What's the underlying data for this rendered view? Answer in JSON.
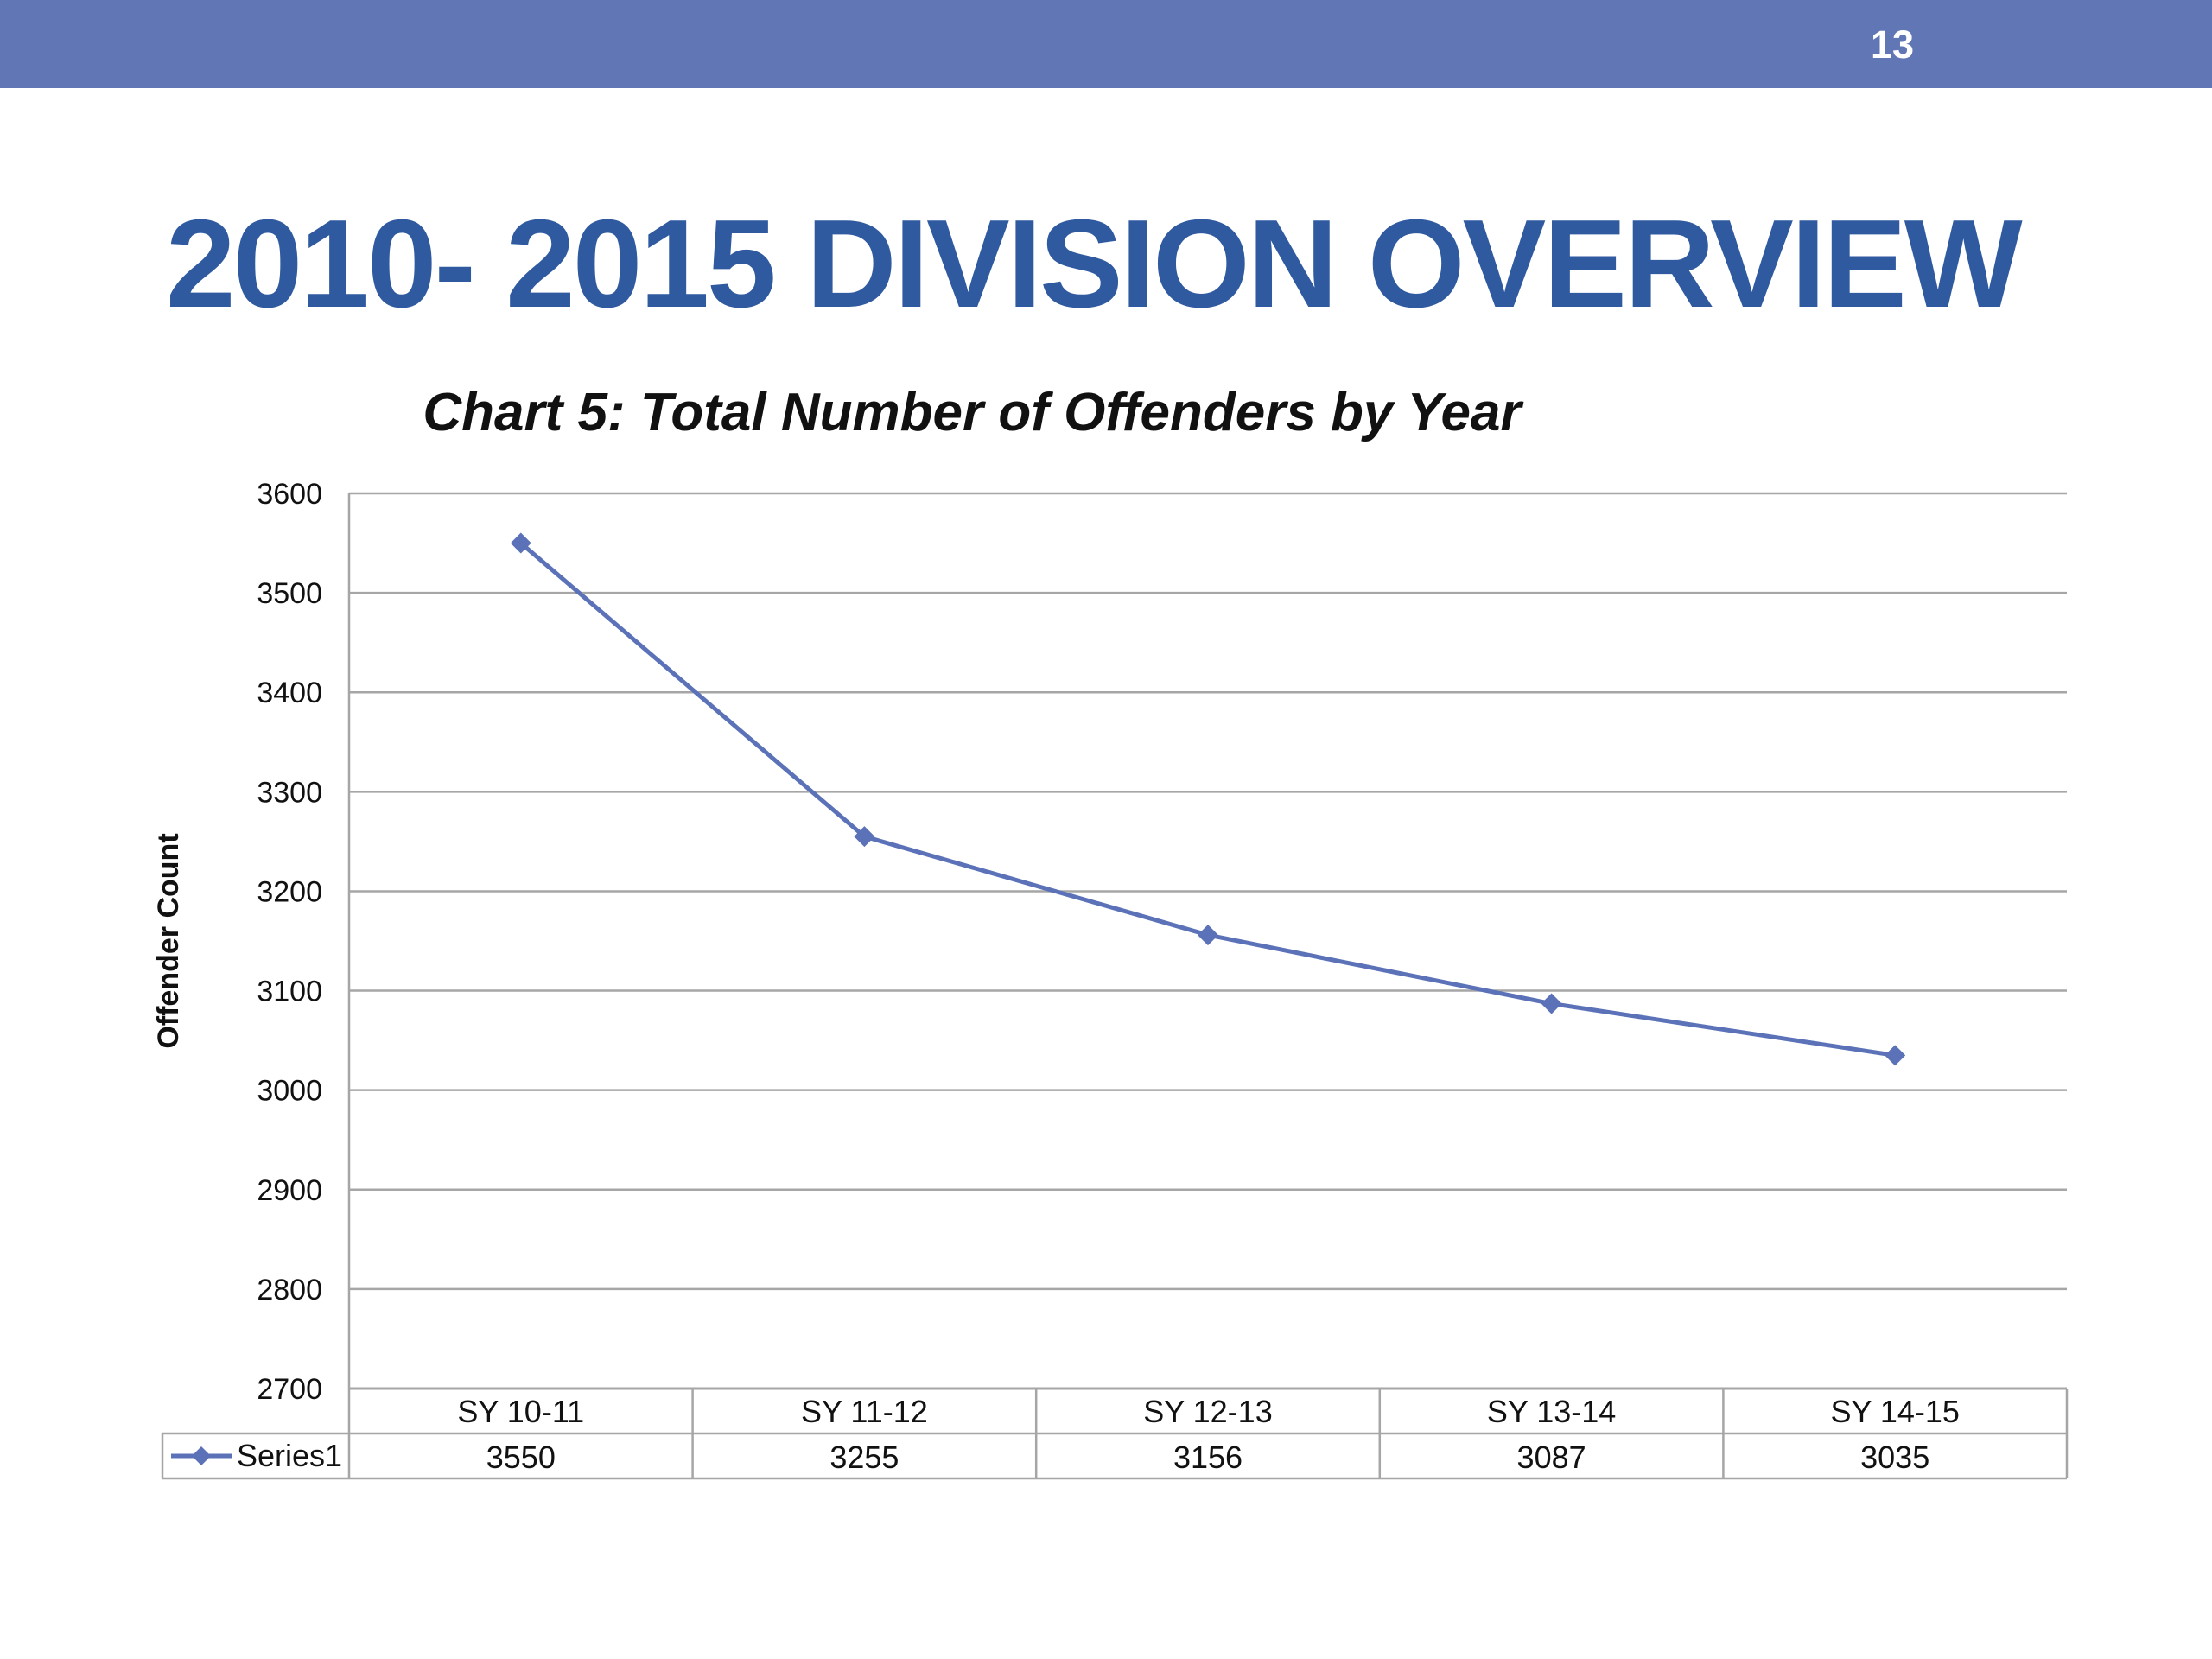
{
  "slide": {
    "number": "13",
    "title": "2010- 2015 DIVISION OVERVIEW"
  },
  "colors": {
    "header_bar": "#6177b5",
    "title": "#2f5aa0",
    "series": "#5b72b8",
    "grid": "#a6a6a6"
  },
  "chart_data": {
    "type": "line",
    "title": "Chart 5: Total Number of Offenders by Year",
    "xlabel": "",
    "ylabel": "Offender Count",
    "categories": [
      "SY 10-11",
      "SY 11-12",
      "SY 12-13",
      "SY 13-14",
      "SY 14-15"
    ],
    "series": [
      {
        "name": "Series1",
        "values": [
          3550,
          3255,
          3156,
          3087,
          3035
        ],
        "marker": "diamond"
      }
    ],
    "ylim": [
      2700,
      3600
    ],
    "yticks": [
      3600,
      3500,
      3400,
      3300,
      3200,
      3100,
      3000,
      2900,
      2800,
      2700
    ],
    "grid": true,
    "legend": "data-table",
    "data_table": true
  }
}
